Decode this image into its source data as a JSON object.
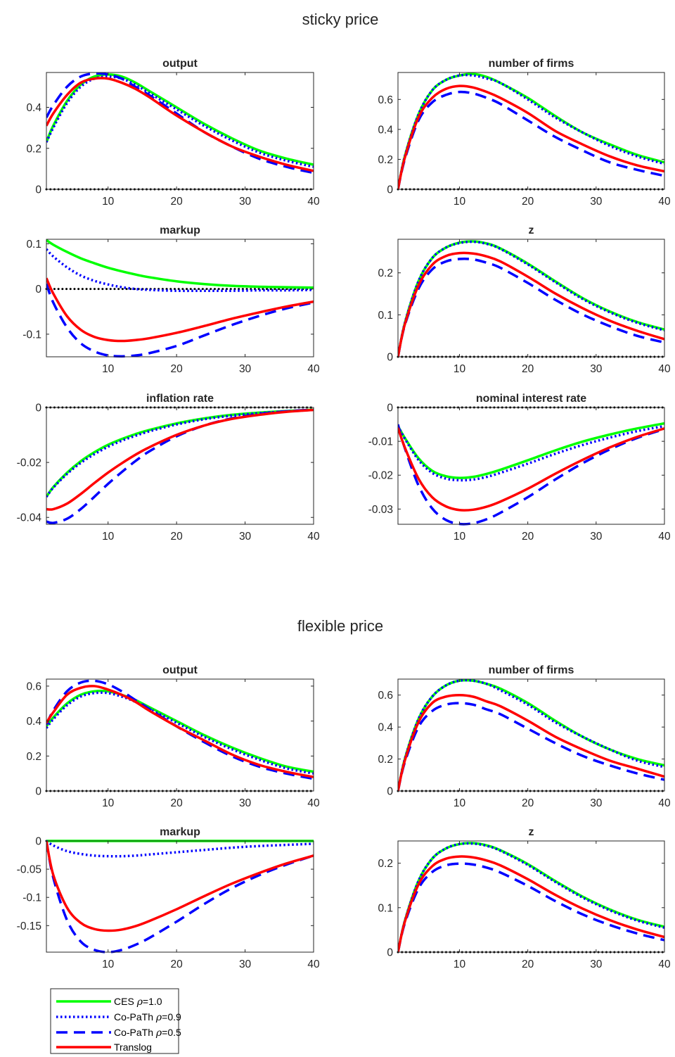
{
  "sections": [
    {
      "title": "sticky price"
    },
    {
      "title": "flexible price"
    }
  ],
  "legend": {
    "placement": "bottom-left",
    "entries": [
      {
        "label": "CES ",
        "rho": "=1.0",
        "color": "#00ff00",
        "style": "solid"
      },
      {
        "label": "Co-PaTh ",
        "rho": "=0.9",
        "color": "#0000ff",
        "style": "dotted"
      },
      {
        "label": "Co-PaTh ",
        "rho": "=0.5",
        "color": "#0000ff",
        "style": "dashed"
      },
      {
        "label": "Translog",
        "rho": "",
        "color": "#ff0000",
        "style": "solid"
      }
    ]
  },
  "chart_data": [
    {
      "type": "line",
      "section": "sticky price",
      "title": "output",
      "xlim": [
        1,
        40
      ],
      "ylim": [
        0,
        0.57
      ],
      "xticks": [
        "10",
        "20",
        "30",
        "40"
      ],
      "yticks": [
        "0",
        "0.2",
        "0.4"
      ],
      "x": [
        1,
        2,
        4,
        6,
        8,
        10,
        12,
        14,
        16,
        20,
        24,
        28,
        32,
        36,
        40
      ],
      "series": [
        {
          "values": [
            0.23,
            0.31,
            0.43,
            0.51,
            0.55,
            0.56,
            0.55,
            0.52,
            0.48,
            0.4,
            0.32,
            0.25,
            0.19,
            0.15,
            0.12
          ]
        },
        {
          "values": [
            0.23,
            0.3,
            0.42,
            0.5,
            0.54,
            0.55,
            0.54,
            0.51,
            0.47,
            0.39,
            0.31,
            0.24,
            0.18,
            0.14,
            0.11
          ]
        },
        {
          "values": [
            0.35,
            0.41,
            0.5,
            0.55,
            0.565,
            0.56,
            0.54,
            0.5,
            0.46,
            0.37,
            0.28,
            0.21,
            0.15,
            0.11,
            0.08
          ]
        },
        {
          "values": [
            0.31,
            0.37,
            0.46,
            0.52,
            0.54,
            0.54,
            0.52,
            0.49,
            0.45,
            0.36,
            0.28,
            0.21,
            0.16,
            0.12,
            0.09
          ]
        }
      ]
    },
    {
      "type": "line",
      "section": "sticky price",
      "title": "number of firms",
      "xlim": [
        1,
        40
      ],
      "ylim": [
        0,
        0.78
      ],
      "xticks": [
        "10",
        "20",
        "30",
        "40"
      ],
      "yticks": [
        "0",
        "0.2",
        "0.4",
        "0.6"
      ],
      "x": [
        1,
        2,
        4,
        6,
        8,
        10,
        12,
        14,
        16,
        20,
        24,
        28,
        32,
        36,
        40
      ],
      "series": [
        {
          "values": [
            0,
            0.22,
            0.5,
            0.66,
            0.73,
            0.76,
            0.77,
            0.75,
            0.71,
            0.61,
            0.49,
            0.38,
            0.3,
            0.23,
            0.18
          ]
        },
        {
          "values": [
            0,
            0.22,
            0.5,
            0.66,
            0.73,
            0.76,
            0.76,
            0.74,
            0.71,
            0.6,
            0.48,
            0.38,
            0.29,
            0.22,
            0.17
          ]
        },
        {
          "values": [
            0,
            0.2,
            0.46,
            0.58,
            0.63,
            0.65,
            0.64,
            0.61,
            0.57,
            0.46,
            0.35,
            0.26,
            0.18,
            0.13,
            0.09
          ]
        },
        {
          "values": [
            0,
            0.21,
            0.48,
            0.61,
            0.67,
            0.69,
            0.68,
            0.65,
            0.61,
            0.51,
            0.39,
            0.3,
            0.22,
            0.16,
            0.12
          ]
        }
      ]
    },
    {
      "type": "line",
      "section": "sticky price",
      "title": "markup",
      "xlim": [
        1,
        40
      ],
      "ylim": [
        -0.15,
        0.11
      ],
      "xticks": [
        "10",
        "20",
        "30",
        "40"
      ],
      "yticks": [
        "-0.1",
        "0",
        "0.1"
      ],
      "x": [
        1,
        2,
        4,
        6,
        8,
        10,
        12,
        14,
        16,
        20,
        24,
        28,
        32,
        36,
        40
      ],
      "series": [
        {
          "values": [
            0.108,
            0.098,
            0.082,
            0.068,
            0.057,
            0.047,
            0.039,
            0.032,
            0.026,
            0.017,
            0.011,
            0.007,
            0.005,
            0.004,
            0.003
          ]
        },
        {
          "values": [
            0.088,
            0.072,
            0.048,
            0.03,
            0.018,
            0.01,
            0.004,
            0.0,
            -0.002,
            -0.004,
            -0.004,
            -0.004,
            -0.003,
            -0.003,
            -0.002
          ]
        },
        {
          "values": [
            0.012,
            -0.03,
            -0.085,
            -0.12,
            -0.138,
            -0.147,
            -0.149,
            -0.147,
            -0.142,
            -0.126,
            -0.103,
            -0.08,
            -0.06,
            -0.043,
            -0.03
          ]
        },
        {
          "values": [
            0.024,
            -0.01,
            -0.06,
            -0.09,
            -0.106,
            -0.113,
            -0.115,
            -0.113,
            -0.109,
            -0.097,
            -0.082,
            -0.066,
            -0.052,
            -0.039,
            -0.028
          ]
        }
      ]
    },
    {
      "type": "line",
      "section": "sticky price",
      "title": "z",
      "xlim": [
        1,
        40
      ],
      "ylim": [
        0,
        0.28
      ],
      "xticks": [
        "10",
        "20",
        "30",
        "40"
      ],
      "yticks": [
        "0",
        "0.1",
        "0.2"
      ],
      "x": [
        1,
        2,
        4,
        6,
        8,
        10,
        12,
        14,
        16,
        20,
        24,
        28,
        32,
        36,
        40
      ],
      "series": [
        {
          "values": [
            0,
            0.08,
            0.18,
            0.235,
            0.26,
            0.272,
            0.275,
            0.27,
            0.258,
            0.222,
            0.18,
            0.14,
            0.108,
            0.083,
            0.065
          ]
        },
        {
          "values": [
            0,
            0.08,
            0.18,
            0.235,
            0.26,
            0.271,
            0.274,
            0.269,
            0.257,
            0.22,
            0.178,
            0.138,
            0.106,
            0.081,
            0.063
          ]
        },
        {
          "values": [
            0,
            0.075,
            0.162,
            0.208,
            0.227,
            0.233,
            0.232,
            0.224,
            0.212,
            0.176,
            0.136,
            0.101,
            0.073,
            0.05,
            0.034
          ]
        },
        {
          "values": [
            0,
            0.077,
            0.17,
            0.219,
            0.24,
            0.247,
            0.246,
            0.239,
            0.227,
            0.191,
            0.151,
            0.116,
            0.086,
            0.062,
            0.042
          ]
        }
      ]
    },
    {
      "type": "line",
      "section": "sticky price",
      "title": "inflation rate",
      "xlim": [
        1,
        40
      ],
      "ylim": [
        -0.0425,
        0
      ],
      "xticks": [
        "10",
        "20",
        "30",
        "40"
      ],
      "yticks": [
        "-0.04",
        "-0.02",
        "0"
      ],
      "x": [
        1,
        2,
        4,
        6,
        8,
        10,
        12,
        14,
        16,
        20,
        24,
        28,
        32,
        36,
        40
      ],
      "series": [
        {
          "values": [
            -0.0325,
            -0.029,
            -0.0238,
            -0.0196,
            -0.0163,
            -0.0136,
            -0.0115,
            -0.0097,
            -0.0082,
            -0.0058,
            -0.004,
            -0.0027,
            -0.0019,
            -0.0013,
            -0.0008
          ]
        },
        {
          "values": [
            -0.0325,
            -0.0292,
            -0.0242,
            -0.0202,
            -0.017,
            -0.0143,
            -0.0121,
            -0.0103,
            -0.0087,
            -0.0062,
            -0.0043,
            -0.003,
            -0.0021,
            -0.0014,
            -0.0009
          ]
        },
        {
          "values": [
            -0.0415,
            -0.042,
            -0.0405,
            -0.037,
            -0.0325,
            -0.0278,
            -0.0235,
            -0.0195,
            -0.016,
            -0.0105,
            -0.0066,
            -0.004,
            -0.0024,
            -0.0014,
            -0.0008
          ]
        },
        {
          "values": [
            -0.037,
            -0.037,
            -0.035,
            -0.0315,
            -0.0275,
            -0.0237,
            -0.0203,
            -0.0172,
            -0.0145,
            -0.01,
            -0.0066,
            -0.0042,
            -0.0027,
            -0.0016,
            -0.0009
          ]
        }
      ]
    },
    {
      "type": "line",
      "section": "sticky price",
      "title": "nominal interest rate",
      "xlim": [
        1,
        40
      ],
      "ylim": [
        -0.0345,
        0
      ],
      "xticks": [
        "10",
        "20",
        "30",
        "40"
      ],
      "yticks": [
        "-0.03",
        "-0.02",
        "-0.01",
        "0"
      ],
      "x": [
        1,
        2,
        4,
        6,
        8,
        10,
        12,
        14,
        16,
        20,
        24,
        28,
        32,
        36,
        40
      ],
      "series": [
        {
          "values": [
            -0.0055,
            -0.009,
            -0.015,
            -0.0187,
            -0.0203,
            -0.0208,
            -0.0205,
            -0.0196,
            -0.0184,
            -0.0156,
            -0.0127,
            -0.0101,
            -0.008,
            -0.0062,
            -0.0047
          ]
        },
        {
          "values": [
            -0.0055,
            -0.0092,
            -0.0155,
            -0.0193,
            -0.021,
            -0.0215,
            -0.0213,
            -0.0205,
            -0.0193,
            -0.0166,
            -0.0137,
            -0.0111,
            -0.0089,
            -0.007,
            -0.0055
          ]
        },
        {
          "values": [
            -0.005,
            -0.012,
            -0.023,
            -0.0298,
            -0.0332,
            -0.0344,
            -0.0342,
            -0.033,
            -0.0311,
            -0.0265,
            -0.0213,
            -0.0165,
            -0.0124,
            -0.009,
            -0.0064
          ]
        },
        {
          "values": [
            -0.006,
            -0.0118,
            -0.021,
            -0.0265,
            -0.0292,
            -0.0303,
            -0.0302,
            -0.0293,
            -0.0278,
            -0.024,
            -0.0196,
            -0.0155,
            -0.0118,
            -0.0087,
            -0.0062
          ]
        }
      ]
    },
    {
      "type": "line",
      "section": "flexible price",
      "title": "output",
      "xlim": [
        1,
        40
      ],
      "ylim": [
        0,
        0.64
      ],
      "xticks": [
        "10",
        "20",
        "30",
        "40"
      ],
      "yticks": [
        "0",
        "0.2",
        "0.4",
        "0.6"
      ],
      "x": [
        1,
        2,
        4,
        6,
        8,
        10,
        12,
        14,
        16,
        20,
        24,
        28,
        32,
        36,
        40
      ],
      "series": [
        {
          "values": [
            0.37,
            0.42,
            0.5,
            0.55,
            0.57,
            0.57,
            0.55,
            0.52,
            0.48,
            0.4,
            0.32,
            0.25,
            0.19,
            0.14,
            0.11
          ]
        },
        {
          "values": [
            0.36,
            0.41,
            0.49,
            0.54,
            0.56,
            0.56,
            0.54,
            0.51,
            0.47,
            0.39,
            0.31,
            0.24,
            0.18,
            0.13,
            0.1
          ]
        },
        {
          "values": [
            0.38,
            0.46,
            0.57,
            0.62,
            0.63,
            0.61,
            0.57,
            0.52,
            0.47,
            0.37,
            0.28,
            0.2,
            0.14,
            0.1,
            0.07
          ]
        },
        {
          "values": [
            0.39,
            0.45,
            0.55,
            0.59,
            0.6,
            0.58,
            0.55,
            0.51,
            0.46,
            0.37,
            0.29,
            0.21,
            0.15,
            0.11,
            0.08
          ]
        }
      ]
    },
    {
      "type": "line",
      "section": "flexible price",
      "title": "number of firms",
      "xlim": [
        1,
        40
      ],
      "ylim": [
        0,
        0.7
      ],
      "xticks": [
        "10",
        "20",
        "30",
        "40"
      ],
      "yticks": [
        "0",
        "0.2",
        "0.4",
        "0.6"
      ],
      "x": [
        1,
        2,
        4,
        6,
        8,
        10,
        12,
        14,
        16,
        20,
        24,
        28,
        32,
        36,
        40
      ],
      "series": [
        {
          "values": [
            0,
            0.2,
            0.45,
            0.59,
            0.66,
            0.69,
            0.69,
            0.67,
            0.64,
            0.55,
            0.44,
            0.34,
            0.26,
            0.2,
            0.16
          ]
        },
        {
          "values": [
            0,
            0.2,
            0.45,
            0.59,
            0.66,
            0.69,
            0.69,
            0.67,
            0.63,
            0.54,
            0.43,
            0.34,
            0.26,
            0.19,
            0.15
          ]
        },
        {
          "values": [
            0,
            0.18,
            0.4,
            0.5,
            0.54,
            0.55,
            0.54,
            0.51,
            0.48,
            0.39,
            0.3,
            0.22,
            0.16,
            0.11,
            0.07
          ]
        },
        {
          "values": [
            0,
            0.19,
            0.43,
            0.55,
            0.59,
            0.6,
            0.59,
            0.56,
            0.53,
            0.44,
            0.34,
            0.26,
            0.19,
            0.14,
            0.09
          ]
        }
      ]
    },
    {
      "type": "line",
      "section": "flexible price",
      "title": "markup",
      "xlim": [
        1,
        40
      ],
      "ylim": [
        -0.197,
        0
      ],
      "xticks": [
        "10",
        "20",
        "30",
        "40"
      ],
      "yticks": [
        "-0.15",
        "-0.1",
        "-0.05",
        "0"
      ],
      "x": [
        1,
        2,
        4,
        6,
        8,
        10,
        12,
        14,
        16,
        20,
        24,
        28,
        32,
        36,
        40
      ],
      "series": [
        {
          "values": [
            0,
            0,
            0,
            0,
            0,
            0,
            0,
            0,
            0,
            0,
            0,
            0,
            0,
            0,
            0
          ]
        },
        {
          "values": [
            0,
            -0.008,
            -0.018,
            -0.023,
            -0.026,
            -0.027,
            -0.027,
            -0.026,
            -0.024,
            -0.02,
            -0.016,
            -0.012,
            -0.009,
            -0.007,
            -0.005
          ]
        },
        {
          "values": [
            0,
            -0.065,
            -0.14,
            -0.178,
            -0.193,
            -0.197,
            -0.193,
            -0.184,
            -0.172,
            -0.143,
            -0.112,
            -0.084,
            -0.061,
            -0.042,
            -0.026
          ]
        },
        {
          "values": [
            0,
            -0.06,
            -0.118,
            -0.145,
            -0.156,
            -0.159,
            -0.157,
            -0.151,
            -0.142,
            -0.121,
            -0.098,
            -0.076,
            -0.057,
            -0.04,
            -0.026
          ]
        }
      ]
    },
    {
      "type": "line",
      "section": "flexible price",
      "title": "z",
      "xlim": [
        1,
        40
      ],
      "ylim": [
        0,
        0.25
      ],
      "xticks": [
        "10",
        "20",
        "30",
        "40"
      ],
      "yticks": [
        "0",
        "0.1",
        "0.2"
      ],
      "x": [
        1,
        2,
        4,
        6,
        8,
        10,
        12,
        14,
        16,
        20,
        24,
        28,
        32,
        36,
        40
      ],
      "series": [
        {
          "values": [
            0,
            0.07,
            0.16,
            0.21,
            0.233,
            0.243,
            0.245,
            0.24,
            0.229,
            0.198,
            0.16,
            0.125,
            0.096,
            0.073,
            0.057
          ]
        },
        {
          "values": [
            0,
            0.07,
            0.16,
            0.21,
            0.233,
            0.243,
            0.244,
            0.239,
            0.228,
            0.196,
            0.158,
            0.123,
            0.094,
            0.071,
            0.055
          ]
        },
        {
          "values": [
            0,
            0.065,
            0.143,
            0.18,
            0.195,
            0.199,
            0.197,
            0.19,
            0.179,
            0.149,
            0.115,
            0.085,
            0.061,
            0.042,
            0.027
          ]
        },
        {
          "values": [
            0,
            0.068,
            0.152,
            0.193,
            0.21,
            0.215,
            0.213,
            0.206,
            0.195,
            0.164,
            0.129,
            0.098,
            0.072,
            0.051,
            0.034
          ]
        }
      ]
    }
  ]
}
